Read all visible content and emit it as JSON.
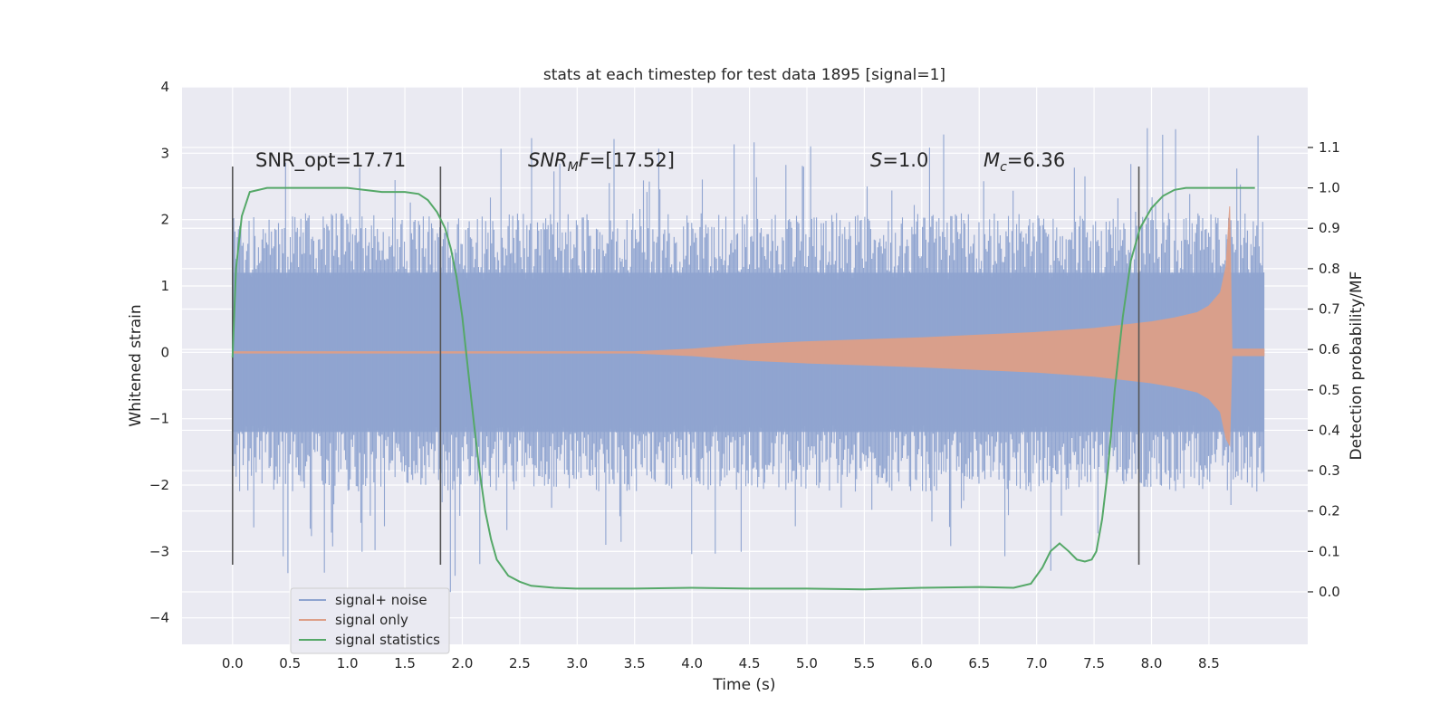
{
  "chart_data": {
    "type": "line",
    "title": "stats at each timestep for test data 1895 [signal=1]",
    "xlabel": "Time (s)",
    "ylabel_left": "Whitened strain",
    "ylabel_right": "Detection probability/MF",
    "xlim": [
      -0.44,
      9.36
    ],
    "ylim_left": [
      -4.4,
      4.0
    ],
    "ylim_right": [
      -0.13,
      1.25
    ],
    "x_ticks": [
      "0.0",
      "0.5",
      "1.0",
      "1.5",
      "2.0",
      "2.5",
      "3.0",
      "3.5",
      "4.0",
      "4.5",
      "5.0",
      "5.5",
      "6.0",
      "6.5",
      "7.0",
      "7.5",
      "8.0",
      "8.5"
    ],
    "x_tick_values": [
      0.0,
      0.5,
      1.0,
      1.5,
      2.0,
      2.5,
      3.0,
      3.5,
      4.0,
      4.5,
      5.0,
      5.5,
      6.0,
      6.5,
      7.0,
      7.5,
      8.0,
      8.5
    ],
    "y_left_ticks": [
      "4",
      "3",
      "2",
      "1",
      "0",
      "−1",
      "−2",
      "−3",
      "−4"
    ],
    "y_left_tick_values": [
      4,
      3,
      2,
      1,
      0,
      -1,
      -2,
      -3,
      -4
    ],
    "y_right_ticks": [
      "1.1",
      "1.0",
      "0.9",
      "0.8",
      "0.7",
      "0.6",
      "0.5",
      "0.4",
      "0.3",
      "0.2",
      "0.1",
      "0.0"
    ],
    "y_right_tick_values": [
      1.1,
      1.0,
      0.9,
      0.8,
      0.7,
      0.6,
      0.5,
      0.4,
      0.3,
      0.2,
      0.1,
      0.0
    ],
    "noise_envelope": {
      "name": "signal+ noise",
      "color": "#8fa4d0",
      "x_range": [
        0.0,
        8.98
      ],
      "typical_amplitude": 2.0,
      "peak_amplitude": 3.6
    },
    "signal_only": {
      "name": "signal only",
      "color": "#dd9f88",
      "x": [
        0.0,
        3.5,
        4.0,
        4.5,
        5.0,
        5.5,
        6.0,
        6.5,
        7.0,
        7.5,
        7.8,
        8.0,
        8.2,
        8.4,
        8.5,
        8.6,
        8.65,
        8.68,
        8.7,
        8.98
      ],
      "upper": [
        0.01,
        0.01,
        0.05,
        0.12,
        0.16,
        0.19,
        0.22,
        0.26,
        0.3,
        0.36,
        0.42,
        0.46,
        0.52,
        0.6,
        0.7,
        0.9,
        1.3,
        2.2,
        0.05,
        0.05
      ],
      "lower": [
        -0.01,
        -0.01,
        -0.05,
        -0.12,
        -0.16,
        -0.19,
        -0.22,
        -0.26,
        -0.3,
        -0.36,
        -0.42,
        -0.46,
        -0.52,
        -0.6,
        -0.7,
        -0.9,
        -1.3,
        -1.4,
        -0.05,
        -0.05
      ]
    },
    "signal_statistics": {
      "name": "signal statistics",
      "color": "#55a868",
      "x": [
        0.0,
        0.03,
        0.08,
        0.15,
        0.3,
        0.5,
        1.0,
        1.3,
        1.5,
        1.62,
        1.7,
        1.78,
        1.85,
        1.9,
        1.95,
        2.0,
        2.05,
        2.1,
        2.15,
        2.2,
        2.25,
        2.3,
        2.4,
        2.5,
        2.6,
        2.8,
        3.0,
        3.5,
        4.0,
        4.5,
        5.0,
        5.5,
        6.0,
        6.5,
        6.8,
        6.95,
        7.05,
        7.12,
        7.2,
        7.28,
        7.35,
        7.42,
        7.48,
        7.52,
        7.57,
        7.62,
        7.68,
        7.75,
        7.82,
        7.9,
        8.0,
        8.1,
        8.2,
        8.3,
        8.5,
        8.7,
        8.9
      ],
      "values": [
        0.58,
        0.8,
        0.93,
        0.99,
        1.0,
        1.0,
        1.0,
        0.99,
        0.99,
        0.985,
        0.97,
        0.94,
        0.9,
        0.85,
        0.78,
        0.68,
        0.55,
        0.42,
        0.3,
        0.2,
        0.13,
        0.08,
        0.04,
        0.025,
        0.015,
        0.01,
        0.008,
        0.008,
        0.01,
        0.008,
        0.008,
        0.006,
        0.01,
        0.012,
        0.01,
        0.02,
        0.06,
        0.1,
        0.12,
        0.1,
        0.08,
        0.075,
        0.08,
        0.1,
        0.18,
        0.3,
        0.5,
        0.68,
        0.82,
        0.9,
        0.95,
        0.98,
        0.995,
        1.0,
        1.0,
        1.0,
        1.0
      ]
    },
    "vertical_markers": [
      {
        "x": 0.0,
        "ymin": -3.2,
        "ymax": 2.8
      },
      {
        "x": 1.81,
        "ymin": -3.2,
        "ymax": 2.8
      },
      {
        "x": 7.89,
        "ymin": -3.2,
        "ymax": 2.8
      }
    ],
    "annotations": [
      {
        "text": "SNR_opt=17.71",
        "x": 0.2,
        "y": 2.8
      },
      {
        "text": "SNRMF=[17.52]",
        "x": 2.6,
        "y": 2.8
      },
      {
        "text": "S=1.0",
        "x": 5.6,
        "y": 2.8
      },
      {
        "text": "Mc=6.36",
        "x": 6.6,
        "y": 2.8
      }
    ],
    "annotation_parts": {
      "snr_mf_base": "SNR",
      "snr_mf_sub": "M",
      "snr_mf_tail": "F",
      "snr_mf_value": "=[17.52]",
      "s_var": "S",
      "s_value": "=1.0",
      "mc_var": "M",
      "mc_sub": "c",
      "mc_value": "=6.36"
    },
    "legend": {
      "position": "lower-left",
      "entries": [
        "signal+ noise",
        "signal only",
        "signal statistics"
      ]
    },
    "style": {
      "plot_background": "#eaeaf2",
      "grid_color": "#ffffff",
      "marker_color": "#555555",
      "grid": true
    }
  }
}
